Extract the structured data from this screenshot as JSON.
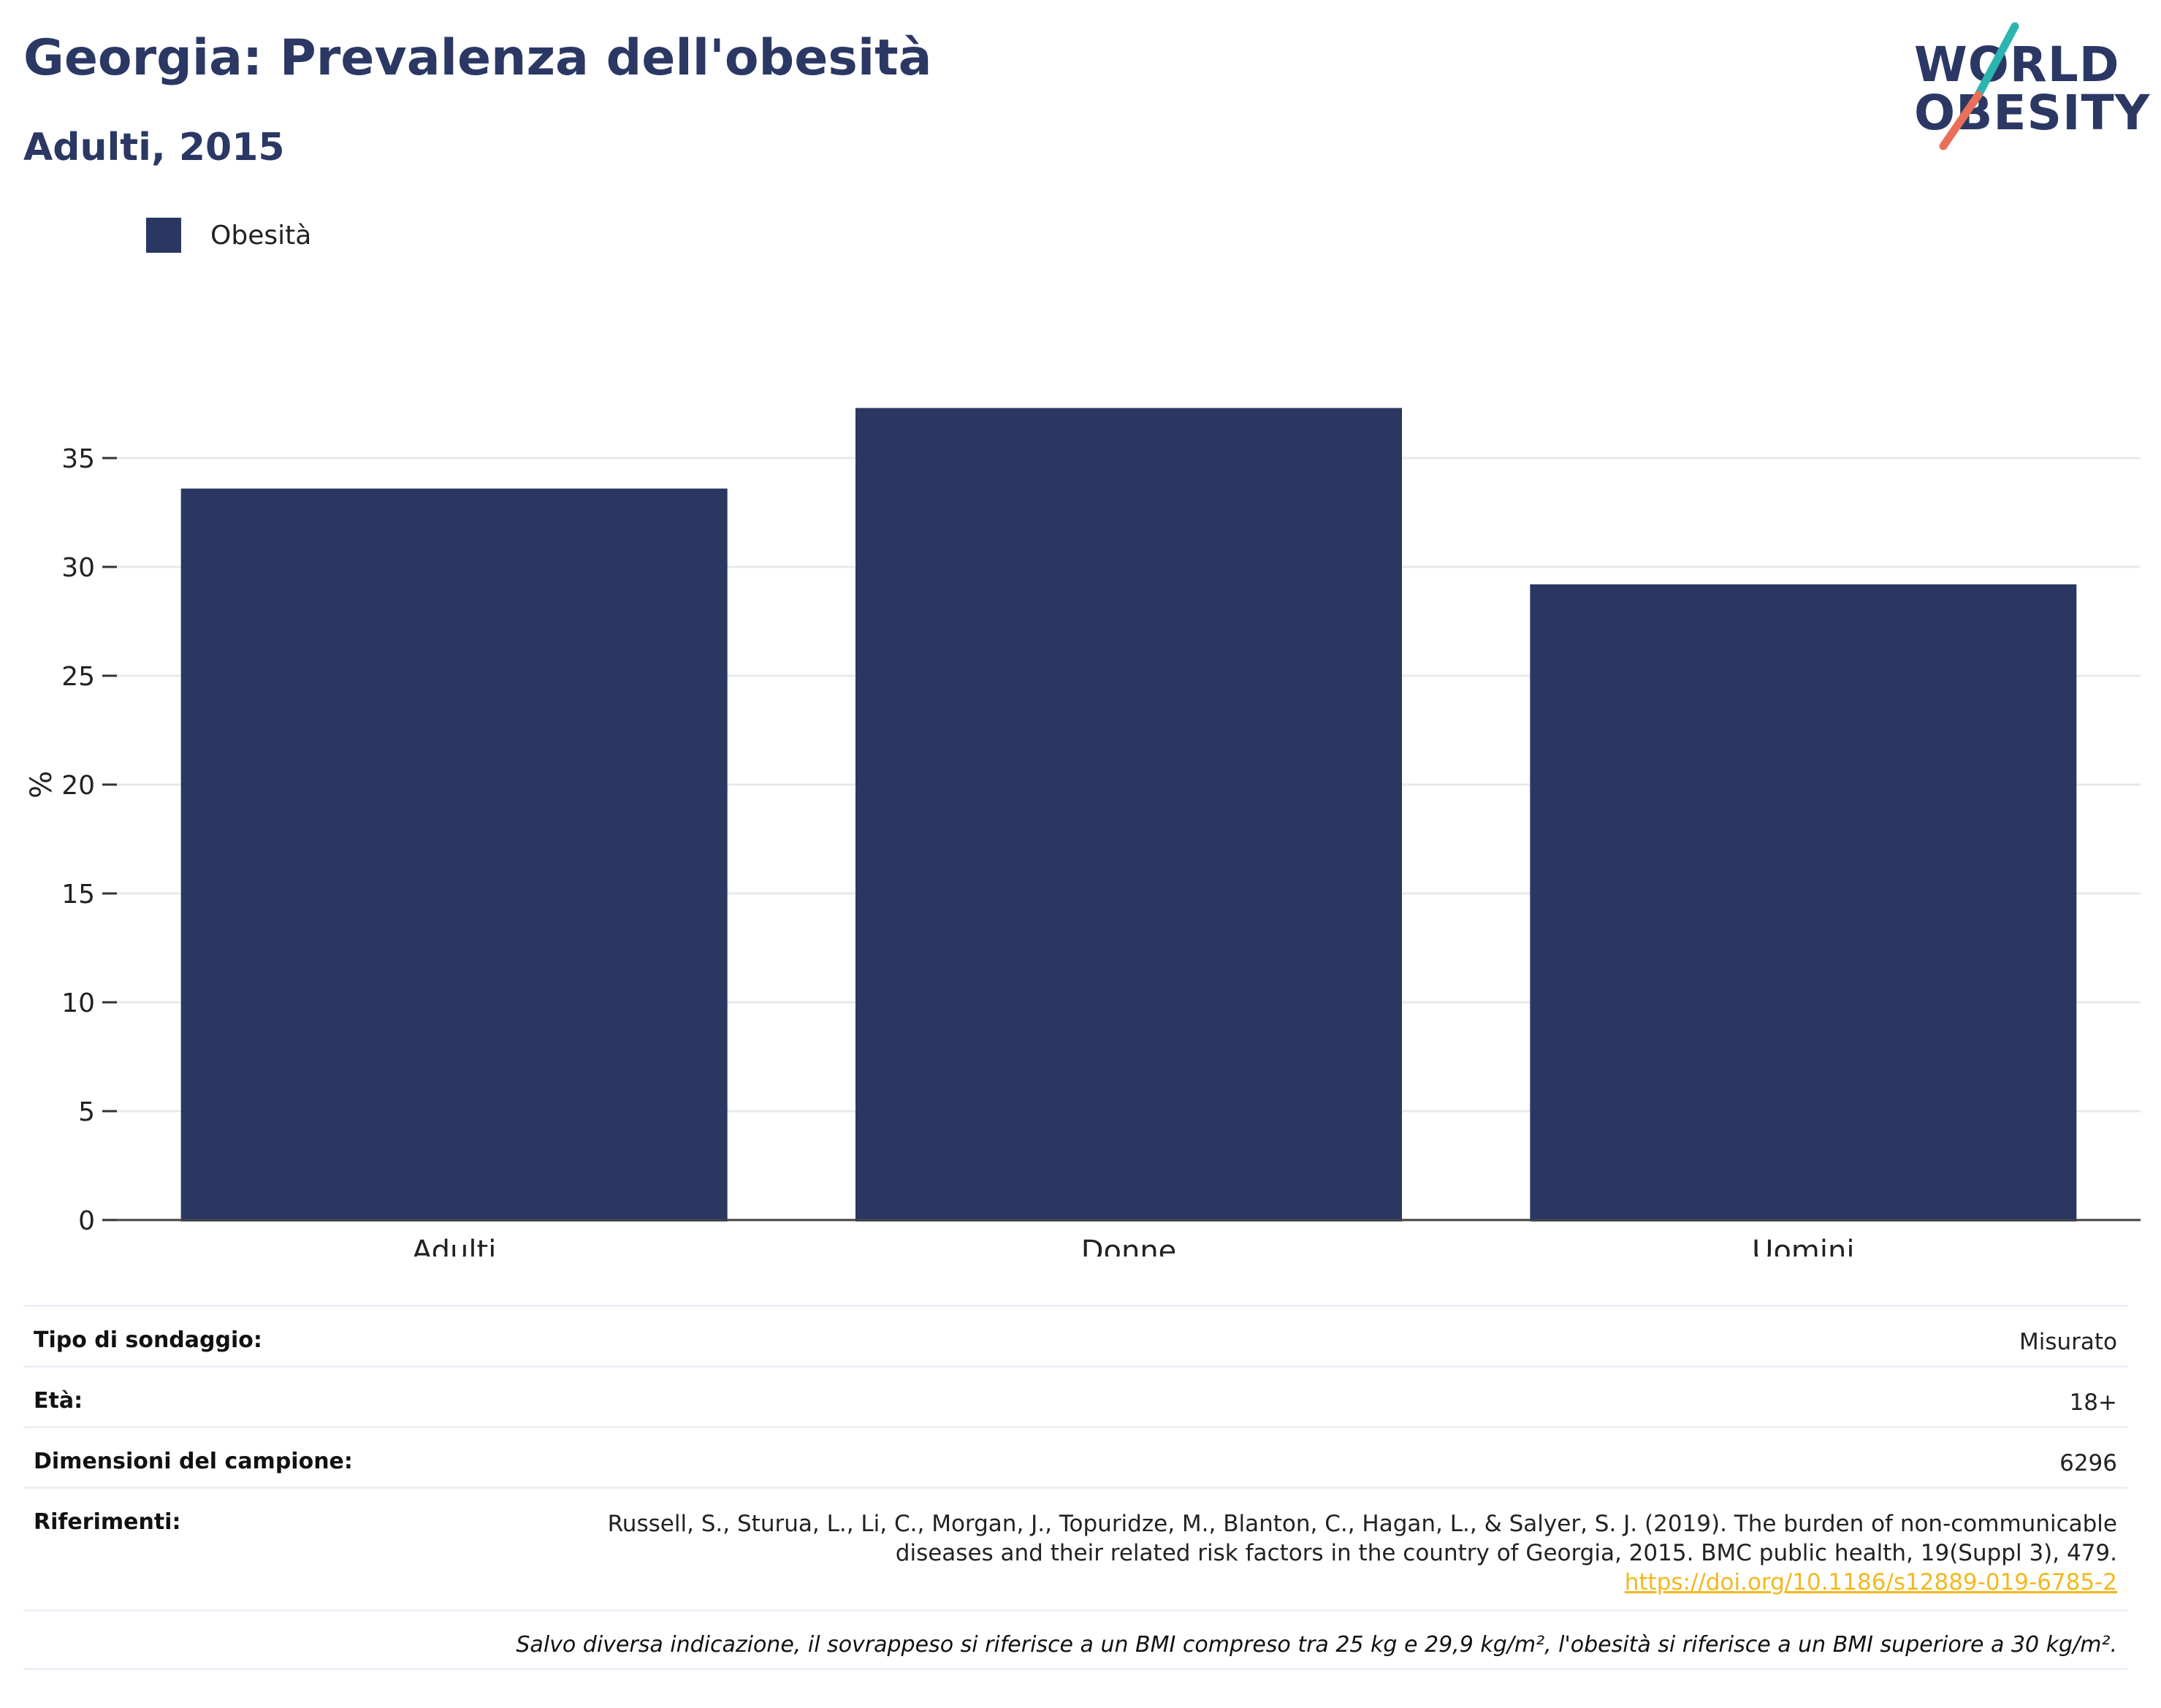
{
  "header": {
    "title": "Georgia: Prevalenza dell'obesità",
    "subtitle": "Adulti, 2015"
  },
  "logo": {
    "line1": "WORLD",
    "line2": "OBESITY",
    "slash_colors": [
      "#2bb5b0",
      "#e8705a"
    ]
  },
  "chart_data": {
    "type": "bar",
    "categories": [
      "Adulti",
      "Donne",
      "Uomini"
    ],
    "series": [
      {
        "name": "Obesità",
        "values": [
          33.6,
          37.3,
          29.2
        ],
        "color": "#2a3763"
      }
    ],
    "title": "",
    "xlabel": "",
    "ylabel": "%",
    "ylim": [
      0,
      40
    ],
    "yticks": [
      0,
      5,
      10,
      15,
      20,
      25,
      30,
      35
    ],
    "grid": true,
    "legend_position": "top-left"
  },
  "info": {
    "rows": [
      {
        "key": "Tipo di sondaggio:",
        "value": "Misurato"
      },
      {
        "key": "Età:",
        "value": "18+"
      },
      {
        "key": "Dimensioni del campione:",
        "value": "6296"
      }
    ],
    "references": {
      "key": "Riferimenti:",
      "line1": "Russell, S., Sturua, L., Li, C., Morgan, J., Topuridze, M., Blanton, C., Hagan, L., & Salyer, S. J. (2019). The burden of non-communicable",
      "line2": "diseases and their related risk factors in the country of Georgia, 2015. BMC public health, 19(Suppl 3), 479.",
      "link": "https://doi.org/10.1186/s12889-019-6785-2"
    },
    "footnote": "Salvo diversa indicazione, il sovrappeso si riferisce a un BMI compreso tra 25 kg e 29,9 kg/m², l'obesità si riferisce a un BMI superiore a 30 kg/m²."
  }
}
